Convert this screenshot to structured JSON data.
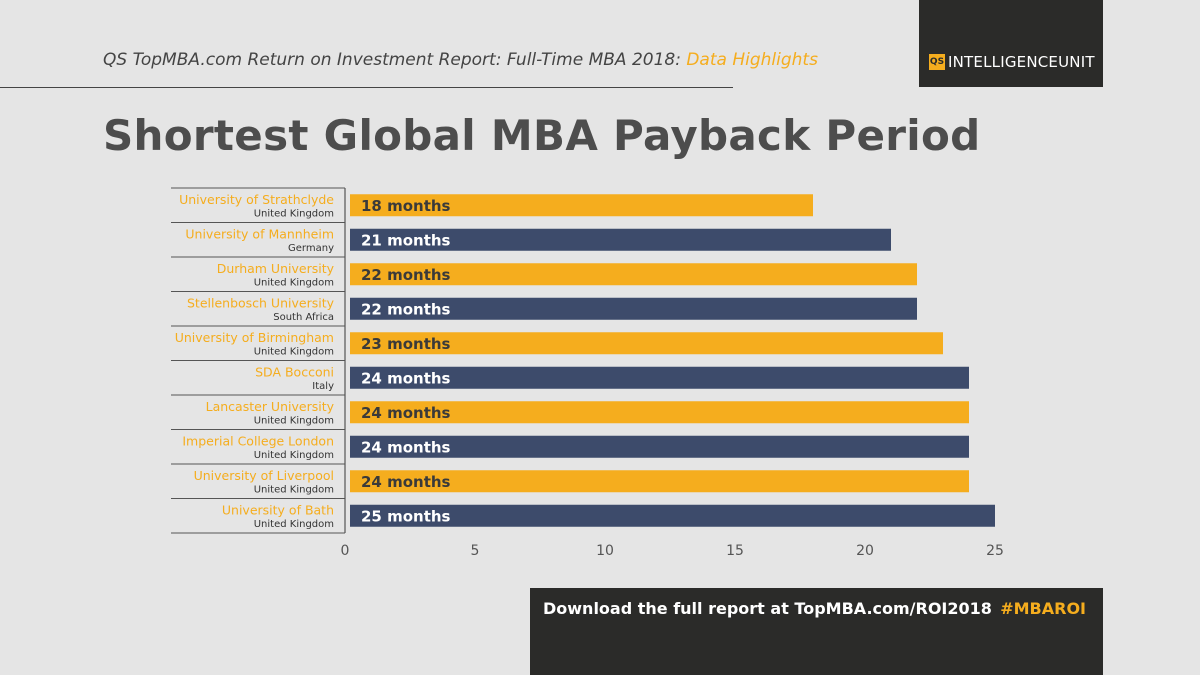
{
  "header": {
    "subtitle_main": "QS TopMBA.com Return on Investment Report: Full-Time MBA 2018:",
    "subtitle_highlight": "Data Highlights",
    "logo_mark": "QS",
    "logo_text": "INTELLIGENCEUNIT",
    "title": "Shortest Global MBA Payback Period"
  },
  "colors": {
    "gold": "#f5ad1e",
    "navy": "#3d4b6b",
    "dark": "#2b2b29"
  },
  "chart_data": {
    "type": "bar",
    "orientation": "horizontal",
    "categories": [
      {
        "name": "University of Strathclyde",
        "country": "United Kingdom"
      },
      {
        "name": "University of Mannheim",
        "country": "Germany"
      },
      {
        "name": "Durham University",
        "country": "United Kingdom"
      },
      {
        "name": "Stellenbosch University",
        "country": "South Africa"
      },
      {
        "name": "University of Birmingham",
        "country": "United Kingdom"
      },
      {
        "name": "SDA Bocconi",
        "country": "Italy"
      },
      {
        "name": "Lancaster University",
        "country": "United Kingdom"
      },
      {
        "name": "Imperial College London",
        "country": "United Kingdom"
      },
      {
        "name": "University of Liverpool",
        "country": "United Kingdom"
      },
      {
        "name": "University of Bath",
        "country": "United Kingdom"
      }
    ],
    "values": [
      18,
      21,
      22,
      22,
      23,
      24,
      24,
      24,
      24,
      25
    ],
    "data_labels": [
      "18 months",
      "21 months",
      "22 months",
      "22 months",
      "23 months",
      "24 months",
      "24 months",
      "24 months",
      "24 months",
      "25 months"
    ],
    "bar_colors": [
      "#f5ad1e",
      "#3d4b6b",
      "#f5ad1e",
      "#3d4b6b",
      "#f5ad1e",
      "#3d4b6b",
      "#f5ad1e",
      "#3d4b6b",
      "#f5ad1e",
      "#3d4b6b"
    ],
    "xlim": [
      0,
      25
    ],
    "x_ticks": [
      0,
      5,
      10,
      15,
      20,
      25
    ],
    "grid": false
  },
  "footer": {
    "text": "Download the full report at TopMBA.com/ROI2018",
    "tag": "#MBAROI"
  }
}
